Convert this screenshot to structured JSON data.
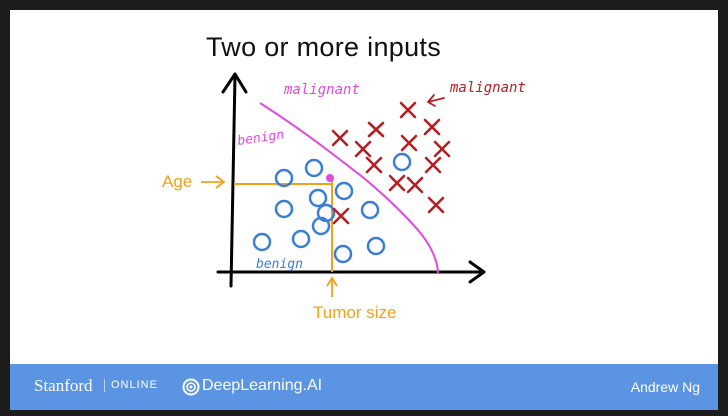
{
  "slide": {
    "title": "Two or more inputs"
  },
  "diagram": {
    "y_label": "Age",
    "x_label": "Tumor size",
    "boundary_label_malignant": "malignant",
    "boundary_label_benign": "benign",
    "legend_malignant": "malignant",
    "legend_benign": "benign",
    "colors": {
      "benign_marker": "#3a7fd5",
      "malignant_marker": "#b51f24",
      "boundary": "#e04ae0",
      "annotation": "#f0a21a",
      "axes": "#000000"
    },
    "benign_count": 14,
    "malignant_count": 13
  },
  "footer": {
    "stanford": "Stanford",
    "online": "ONLINE",
    "deeplearning": "DeepLearning.AI",
    "author": "Andrew Ng",
    "background": "#5a94e2"
  }
}
